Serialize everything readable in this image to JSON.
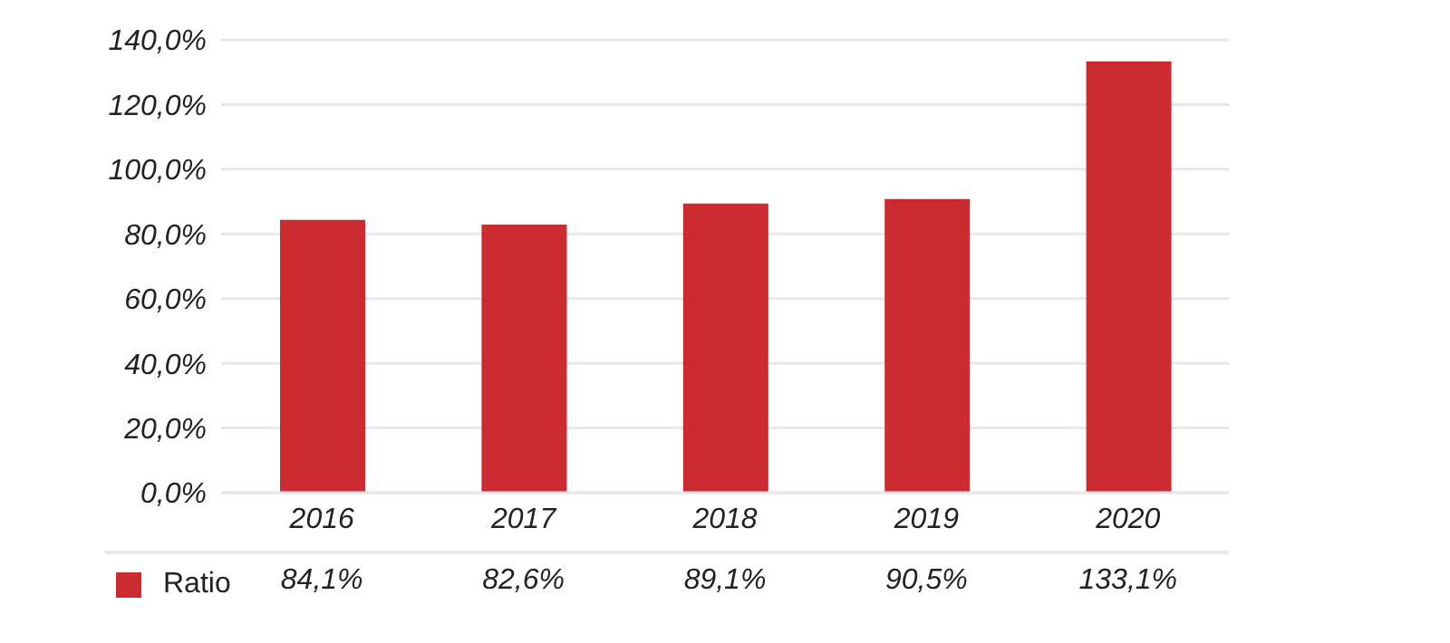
{
  "chart_data": {
    "type": "bar",
    "categories": [
      "2016",
      "2017",
      "2018",
      "2019",
      "2020"
    ],
    "series": [
      {
        "name": "Ratio",
        "color": "#cc2b31",
        "values": [
          84.1,
          82.6,
          89.1,
          90.5,
          133.1
        ],
        "value_labels": [
          "84,1%",
          "82,6%",
          "89,1%",
          "90,5%",
          "133,1%"
        ]
      }
    ],
    "ylim": [
      0,
      140
    ],
    "yticks": [
      {
        "value": 0,
        "label": "0,0%"
      },
      {
        "value": 20,
        "label": "20,0%"
      },
      {
        "value": 40,
        "label": "40,0%"
      },
      {
        "value": 60,
        "label": "60,0%"
      },
      {
        "value": 80,
        "label": "80,0%"
      },
      {
        "value": 100,
        "label": "100,0%"
      },
      {
        "value": 120,
        "label": "120,0%"
      },
      {
        "value": 140,
        "label": "140,0%"
      }
    ],
    "grid": "y",
    "legend": "bottom"
  }
}
